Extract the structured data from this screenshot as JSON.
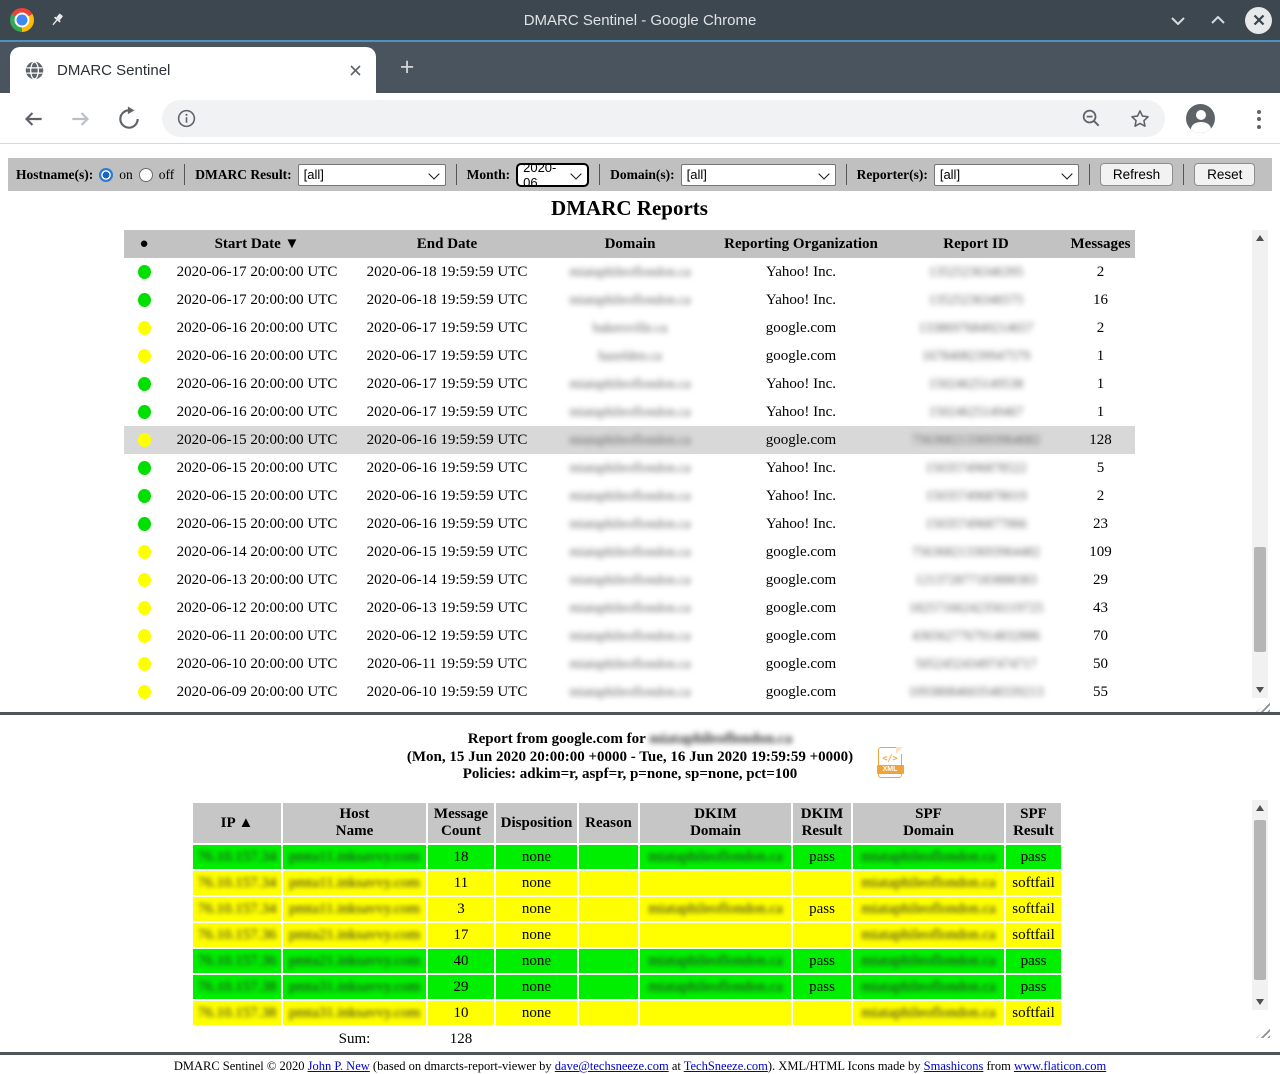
{
  "window": {
    "title": "DMARC Sentinel - Google Chrome"
  },
  "browser": {
    "tab_title": "DMARC Sentinel",
    "new_tab_label": "+"
  },
  "filters": {
    "hostname_label": "Hostname(s):",
    "on_label": "on",
    "off_label": "off",
    "dmarc_result_label": "DMARC Result:",
    "dmarc_result_value": "[all]",
    "month_label": "Month:",
    "month_value": "2020-06",
    "domains_label": "Domain(s):",
    "domains_value": "[all]",
    "reporters_label": "Reporter(s):",
    "reporters_value": "[all]",
    "refresh_label": "Refresh",
    "reset_label": "Reset"
  },
  "reports": {
    "title": "DMARC Reports",
    "columns": [
      {
        "key": "status",
        "label": "●"
      },
      {
        "key": "start-date",
        "label": "Start Date ▼"
      },
      {
        "key": "end-date",
        "label": "End Date"
      },
      {
        "key": "domain",
        "label": "Domain"
      },
      {
        "key": "reporting-organization",
        "label": "Reporting Organization"
      },
      {
        "key": "report-id",
        "label": "Report ID"
      },
      {
        "key": "messages",
        "label": "Messages"
      }
    ],
    "rows": [
      {
        "status": "green",
        "start": "2020-06-17 20:00:00 UTC",
        "end": "2020-06-18 19:59:59 UTC",
        "domain_blurred": "miataphileoflondon.ca",
        "org": "Yahoo! Inc.",
        "report_id_blurred": "13525236346395",
        "messages": "2",
        "selected": false
      },
      {
        "status": "green",
        "start": "2020-06-17 20:00:00 UTC",
        "end": "2020-06-18 19:59:59 UTC",
        "domain_blurred": "miataphileoflondon.ca",
        "org": "Yahoo! Inc.",
        "report_id_blurred": "13525236346575",
        "messages": "16",
        "selected": false
      },
      {
        "status": "yellow",
        "start": "2020-06-16 20:00:00 UTC",
        "end": "2020-06-17 19:59:59 UTC",
        "domain_blurred": "bakersville.ca",
        "org": "google.com",
        "report_id_blurred": "13386976849214657",
        "messages": "2",
        "selected": false
      },
      {
        "status": "yellow",
        "start": "2020-06-16 20:00:00 UTC",
        "end": "2020-06-17 19:59:59 UTC",
        "domain_blurred": "hazelden.ca",
        "org": "google.com",
        "report_id_blurred": "1678408239947579",
        "messages": "1",
        "selected": false
      },
      {
        "status": "green",
        "start": "2020-06-16 20:00:00 UTC",
        "end": "2020-06-17 19:59:59 UTC",
        "domain_blurred": "miataphileoflondon.ca",
        "org": "Yahoo! Inc.",
        "report_id_blurred": "15024625149538",
        "messages": "1",
        "selected": false
      },
      {
        "status": "green",
        "start": "2020-06-16 20:00:00 UTC",
        "end": "2020-06-17 19:59:59 UTC",
        "domain_blurred": "miataphileoflondon.ca",
        "org": "Yahoo! Inc.",
        "report_id_blurred": "15024625149467",
        "messages": "1",
        "selected": false
      },
      {
        "status": "yellow",
        "start": "2020-06-15 20:00:00 UTC",
        "end": "2020-06-16 19:59:59 UTC",
        "domain_blurred": "miataphileoflondon.ca",
        "org": "google.com",
        "report_id_blurred": "7563682133693964682",
        "messages": "128",
        "selected": true
      },
      {
        "status": "green",
        "start": "2020-06-15 20:00:00 UTC",
        "end": "2020-06-16 19:59:59 UTC",
        "domain_blurred": "miataphileoflondon.ca",
        "org": "Yahoo! Inc.",
        "report_id_blurred": "150357496878522",
        "messages": "5",
        "selected": false
      },
      {
        "status": "green",
        "start": "2020-06-15 20:00:00 UTC",
        "end": "2020-06-16 19:59:59 UTC",
        "domain_blurred": "miataphileoflondon.ca",
        "org": "Yahoo! Inc.",
        "report_id_blurred": "150357496878019",
        "messages": "2",
        "selected": false
      },
      {
        "status": "green",
        "start": "2020-06-15 20:00:00 UTC",
        "end": "2020-06-16 19:59:59 UTC",
        "domain_blurred": "miataphileoflondon.ca",
        "org": "Yahoo! Inc.",
        "report_id_blurred": "150357496877066",
        "messages": "23",
        "selected": false
      },
      {
        "status": "yellow",
        "start": "2020-06-14 20:00:00 UTC",
        "end": "2020-06-15 19:59:59 UTC",
        "domain_blurred": "miataphileoflondon.ca",
        "org": "google.com",
        "report_id_blurred": "7563682133693964482",
        "messages": "109",
        "selected": false
      },
      {
        "status": "yellow",
        "start": "2020-06-13 20:00:00 UTC",
        "end": "2020-06-14 19:59:59 UTC",
        "domain_blurred": "miataphileoflondon.ca",
        "org": "google.com",
        "report_id_blurred": "121372877183888383",
        "messages": "29",
        "selected": false
      },
      {
        "status": "yellow",
        "start": "2020-06-12 20:00:00 UTC",
        "end": "2020-06-13 19:59:59 UTC",
        "domain_blurred": "miataphileoflondon.ca",
        "org": "google.com",
        "report_id_blurred": "18257166242356119725",
        "messages": "43",
        "selected": false
      },
      {
        "status": "yellow",
        "start": "2020-06-11 20:00:00 UTC",
        "end": "2020-06-12 19:59:59 UTC",
        "domain_blurred": "miataphileoflondon.ca",
        "org": "google.com",
        "report_id_blurred": "4365627767914832886",
        "messages": "70",
        "selected": false
      },
      {
        "status": "yellow",
        "start": "2020-06-10 20:00:00 UTC",
        "end": "2020-06-11 19:59:59 UTC",
        "domain_blurred": "miataphileoflondon.ca",
        "org": "google.com",
        "report_id_blurred": "505245243497474717",
        "messages": "50",
        "selected": false
      },
      {
        "status": "yellow",
        "start": "2020-06-09 20:00:00 UTC",
        "end": "2020-06-10 19:59:59 UTC",
        "domain_blurred": "miataphileoflondon.ca",
        "org": "google.com",
        "report_id_blurred": "10938084603548339213",
        "messages": "55",
        "selected": false
      }
    ]
  },
  "detail": {
    "line1_prefix": "Report from google.com for ",
    "domain_blurred": "miataphileoflondon.ca",
    "line2": "(Mon, 15 Jun 2020 20:00:00 +0000 - Tue, 16 Jun 2020 19:59:59 +0000)",
    "line3": "Policies: adkim=r, aspf=r, p=none, sp=none, pct=100",
    "xml_icon_glyph": "</>",
    "xml_icon_label": "XML",
    "columns": [
      {
        "key": "ip",
        "lines": [
          "IP ▲"
        ]
      },
      {
        "key": "host-name",
        "lines": [
          "Host",
          "Name"
        ]
      },
      {
        "key": "message-count",
        "lines": [
          "Message",
          "Count"
        ]
      },
      {
        "key": "disposition",
        "lines": [
          "Disposition"
        ]
      },
      {
        "key": "reason",
        "lines": [
          "Reason"
        ]
      },
      {
        "key": "dkim-domain",
        "lines": [
          "DKIM",
          "Domain"
        ]
      },
      {
        "key": "dkim-result",
        "lines": [
          "DKIM",
          "Result"
        ]
      },
      {
        "key": "spf-domain",
        "lines": [
          "SPF",
          "Domain"
        ]
      },
      {
        "key": "spf-result",
        "lines": [
          "SPF",
          "Result"
        ]
      }
    ],
    "rows": [
      {
        "color": "green",
        "ip_blurred": "76.10.157.34",
        "host_blurred": "pmta11.inksavvy.com",
        "count": "18",
        "disposition": "none",
        "reason": "",
        "dkim_domain_blurred": "miataphileoflondon.ca",
        "dkim_result": "pass",
        "spf_domain_blurred": "miataphileoflondon.ca",
        "spf_result": "pass"
      },
      {
        "color": "yellow",
        "ip_blurred": "76.10.157.34",
        "host_blurred": "pmta11.inksavvy.com",
        "count": "11",
        "disposition": "none",
        "reason": "",
        "dkim_domain_blurred": "",
        "dkim_result": "",
        "spf_domain_blurred": "miataphileoflondon.ca",
        "spf_result": "softfail"
      },
      {
        "color": "yellow",
        "ip_blurred": "76.10.157.34",
        "host_blurred": "pmta11.inksavvy.com",
        "count": "3",
        "disposition": "none",
        "reason": "",
        "dkim_domain_blurred": "miataphileoflondon.ca",
        "dkim_result": "pass",
        "spf_domain_blurred": "miataphileoflondon.ca",
        "spf_result": "softfail"
      },
      {
        "color": "yellow",
        "ip_blurred": "76.10.157.36",
        "host_blurred": "pmta21.inksavvy.com",
        "count": "17",
        "disposition": "none",
        "reason": "",
        "dkim_domain_blurred": "",
        "dkim_result": "",
        "spf_domain_blurred": "miataphileoflondon.ca",
        "spf_result": "softfail"
      },
      {
        "color": "green",
        "ip_blurred": "76.10.157.36",
        "host_blurred": "pmta21.inksavvy.com",
        "count": "40",
        "disposition": "none",
        "reason": "",
        "dkim_domain_blurred": "miataphileoflondon.ca",
        "dkim_result": "pass",
        "spf_domain_blurred": "miataphileoflondon.ca",
        "spf_result": "pass"
      },
      {
        "color": "green",
        "ip_blurred": "76.10.157.38",
        "host_blurred": "pmta31.inksavvy.com",
        "count": "29",
        "disposition": "none",
        "reason": "",
        "dkim_domain_blurred": "miataphileoflondon.ca",
        "dkim_result": "pass",
        "spf_domain_blurred": "miataphileoflondon.ca",
        "spf_result": "pass"
      },
      {
        "color": "yellow",
        "ip_blurred": "76.10.157.38",
        "host_blurred": "pmta31.inksavvy.com",
        "count": "10",
        "disposition": "none",
        "reason": "",
        "dkim_domain_blurred": "",
        "dkim_result": "",
        "spf_domain_blurred": "miataphileoflondon.ca",
        "spf_result": "softfail"
      }
    ],
    "sum_label": "Sum:",
    "sum_value": "128"
  },
  "footer": {
    "parts": [
      {
        "text": "DMARC Sentinel © 2020 ",
        "link": false
      },
      {
        "text": "John P. New",
        "link": true
      },
      {
        "text": " (based on dmarcts-report-viewer by ",
        "link": false
      },
      {
        "text": "dave@techsneeze.com",
        "link": true
      },
      {
        "text": " at ",
        "link": false
      },
      {
        "text": "TechSneeze.com",
        "link": true
      },
      {
        "text": "). XML/HTML Icons made by ",
        "link": false
      },
      {
        "text": "Smashicons",
        "link": true
      },
      {
        "text": " from ",
        "link": false
      },
      {
        "text": "www.flaticon.com",
        "link": true
      }
    ]
  },
  "colors": {
    "status_green": "#00e000",
    "status_yellow": "#ffff00",
    "cell_green": "#00ee00",
    "cell_yellow": "#ffff00",
    "selected_row": "#d8d8d8",
    "titlebar": "#3d4750",
    "tabstrip": "#49545e",
    "toolbar_gray": "#c0c0c0",
    "link_blue": "#0000cd",
    "xml_icon_orange": "#efa33c"
  }
}
